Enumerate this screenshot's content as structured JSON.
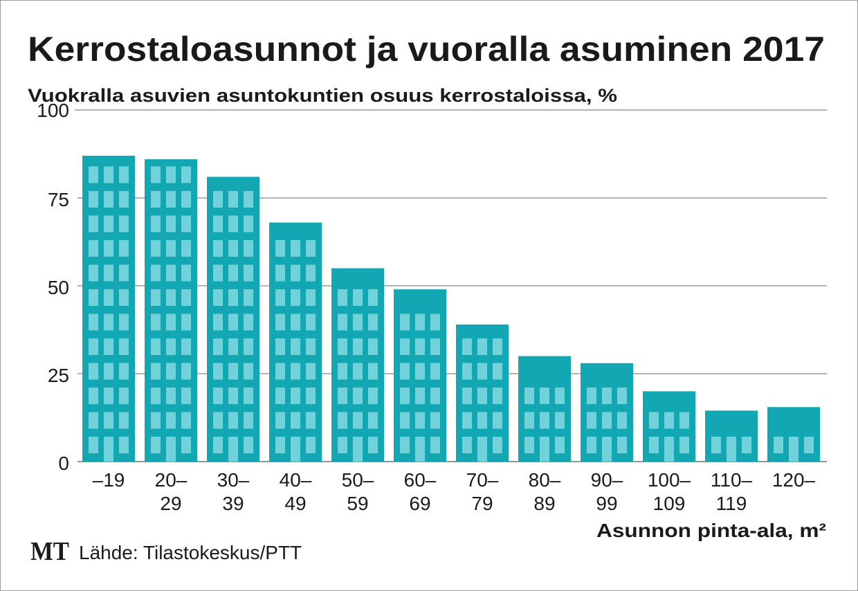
{
  "chart_data": {
    "type": "bar",
    "title": "Kerrostaloasunnot ja vuoralla asuminen 2017",
    "subtitle": "Vuokralla asuvien asuntokuntien osuus kerrostaloissa, %",
    "x_label": "Asunnon pinta-ala, m²",
    "logo": "MT",
    "source": "Lähde: Tilastokeskus/PTT",
    "categories": [
      [
        "–19"
      ],
      [
        "20–",
        "29"
      ],
      [
        "30–",
        "39"
      ],
      [
        "40–",
        "49"
      ],
      [
        "50–",
        "59"
      ],
      [
        "60–",
        "69"
      ],
      [
        "70–",
        "79"
      ],
      [
        "80–",
        "89"
      ],
      [
        "90–",
        "99"
      ],
      [
        "100–",
        "109"
      ],
      [
        "110–",
        "119"
      ],
      [
        "120–"
      ]
    ],
    "values": [
      87,
      86,
      81,
      68,
      55,
      49,
      39,
      30,
      28,
      20,
      14.5,
      15.5
    ],
    "color": "#13a7b3",
    "window_color": "#72d2da",
    "ylim": [
      0,
      100
    ],
    "yticks": [
      0,
      25,
      50,
      75,
      100
    ],
    "grid": true
  }
}
